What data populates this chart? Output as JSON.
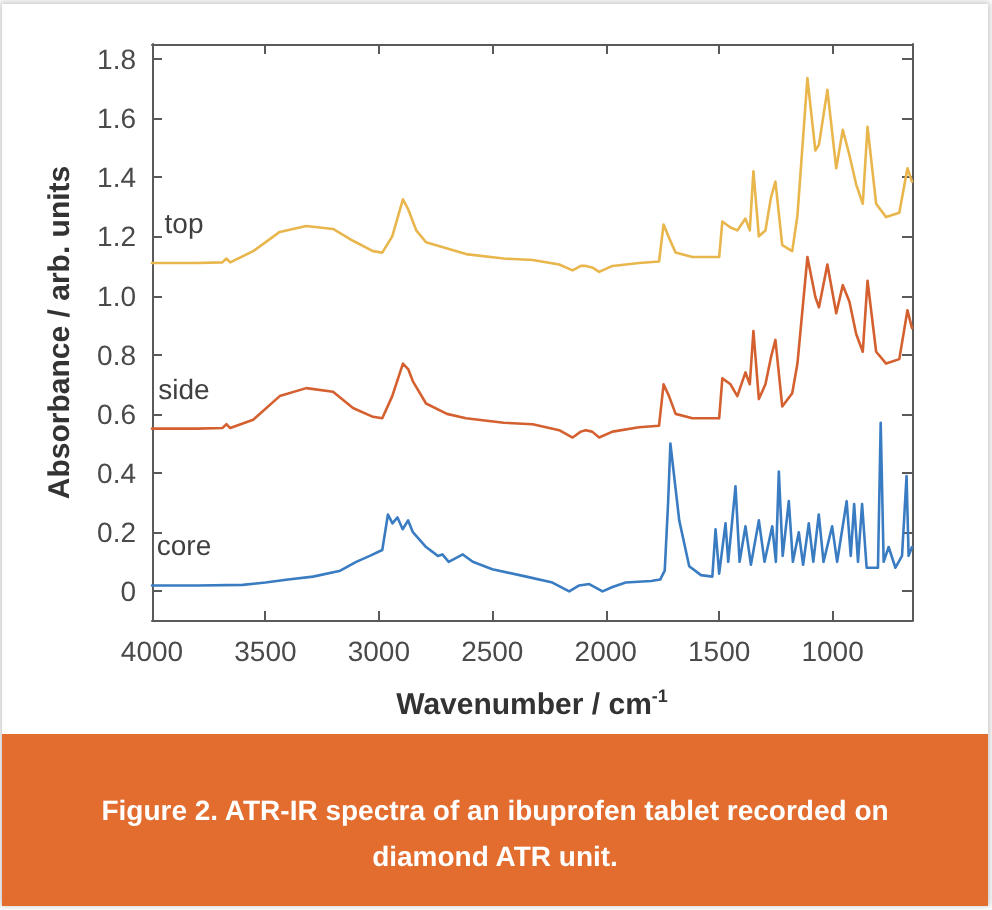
{
  "chart_data": {
    "type": "line",
    "xlabel": "Wavenumber / cm$^{-1}$",
    "ylabel": "Absorbance / arb. units",
    "annotations": [
      "Figure 2. ATR-IR spectra of an ibuprofen tablet recorded on diamond ATR unit."
    ],
    "xlim": [
      4000,
      650
    ],
    "xticks": [
      4000,
      3500,
      3000,
      2500,
      2000,
      1500,
      1000
    ],
    "ylim": [
      -0.1,
      1.85
    ],
    "yticks": [
      0,
      0.2,
      0.4,
      0.6,
      0.8,
      {
        "value": 1,
        "label": "1.0"
      },
      1.2,
      1.4,
      1.6,
      1.8
    ],
    "grid": false,
    "line_style": "solid",
    "series": [
      {
        "name": "top",
        "color": "#e8b64c",
        "x": [
          4000,
          3800,
          3690,
          3672,
          3655,
          3554,
          3437,
          3320,
          3202,
          3114,
          3026,
          2985,
          2941,
          2894,
          2870,
          2835,
          2792,
          2616,
          2450,
          2322,
          2205,
          2146,
          2110,
          2088,
          2060,
          2029,
          1970,
          1853,
          1765,
          1745,
          1721,
          1692,
          1618,
          1500,
          1486,
          1450,
          1420,
          1384,
          1365,
          1349,
          1325,
          1296,
          1272,
          1252,
          1222,
          1178,
          1155,
          1111,
          1076,
          1060,
          1023,
          984,
          955,
          926,
          896,
          867,
          846,
          808,
          764,
          706,
          670,
          650
        ],
        "values": [
          1.11,
          1.11,
          1.112,
          1.125,
          1.112,
          1.15,
          1.215,
          1.235,
          1.225,
          1.185,
          1.15,
          1.145,
          1.2,
          1.325,
          1.29,
          1.22,
          1.18,
          1.14,
          1.125,
          1.12,
          1.105,
          1.085,
          1.1,
          1.1,
          1.095,
          1.08,
          1.1,
          1.11,
          1.115,
          1.24,
          1.195,
          1.145,
          1.13,
          1.13,
          1.25,
          1.23,
          1.22,
          1.26,
          1.22,
          1.42,
          1.2,
          1.22,
          1.33,
          1.385,
          1.17,
          1.15,
          1.27,
          1.735,
          1.49,
          1.51,
          1.695,
          1.43,
          1.56,
          1.475,
          1.375,
          1.31,
          1.57,
          1.31,
          1.265,
          1.28,
          1.43,
          1.385
        ]
      },
      {
        "name": "side",
        "color": "#d4602f",
        "x": [
          4000,
          3800,
          3690,
          3672,
          3655,
          3554,
          3437,
          3320,
          3202,
          3114,
          3026,
          2985,
          2941,
          2894,
          2870,
          2850,
          2792,
          2700,
          2616,
          2450,
          2322,
          2205,
          2146,
          2110,
          2088,
          2060,
          2029,
          1970,
          1853,
          1765,
          1745,
          1721,
          1692,
          1618,
          1500,
          1486,
          1450,
          1420,
          1384,
          1365,
          1349,
          1325,
          1296,
          1272,
          1252,
          1222,
          1178,
          1155,
          1111,
          1076,
          1060,
          1023,
          984,
          955,
          926,
          896,
          867,
          846,
          808,
          764,
          706,
          670,
          650
        ],
        "values": [
          0.55,
          0.55,
          0.552,
          0.565,
          0.552,
          0.58,
          0.66,
          0.687,
          0.675,
          0.62,
          0.59,
          0.585,
          0.66,
          0.77,
          0.75,
          0.71,
          0.635,
          0.6,
          0.585,
          0.57,
          0.565,
          0.545,
          0.52,
          0.54,
          0.545,
          0.54,
          0.52,
          0.54,
          0.555,
          0.56,
          0.7,
          0.66,
          0.6,
          0.585,
          0.585,
          0.72,
          0.7,
          0.66,
          0.74,
          0.7,
          0.88,
          0.65,
          0.7,
          0.79,
          0.85,
          0.625,
          0.67,
          0.77,
          1.13,
          0.995,
          0.96,
          1.105,
          0.94,
          1.035,
          0.98,
          0.87,
          0.81,
          1.05,
          0.81,
          0.77,
          0.785,
          0.95,
          0.89
        ]
      },
      {
        "name": "core",
        "color": "#3a7cc2",
        "x": [
          4000,
          3800,
          3600,
          3500,
          3400,
          3290,
          3170,
          3100,
          3040,
          2985,
          2960,
          2940,
          2918,
          2895,
          2871,
          2850,
          2792,
          2740,
          2720,
          2692,
          2630,
          2586,
          2500,
          2350,
          2235,
          2161,
          2117,
          2073,
          2014,
          1970,
          1912,
          1800,
          1760,
          1740,
          1725,
          1715,
          1700,
          1676,
          1632,
          1580,
          1530,
          1516,
          1500,
          1472,
          1460,
          1428,
          1410,
          1384,
          1360,
          1325,
          1300,
          1266,
          1250,
          1237,
          1220,
          1193,
          1175,
          1149,
          1130,
          1105,
          1085,
          1061,
          1040,
          1002,
          980,
          938,
          920,
          905,
          888,
          870,
          850,
          800,
          788,
          775,
          753,
          723,
          694,
          674,
          665,
          650
        ],
        "values": [
          0.02,
          0.02,
          0.022,
          0.03,
          0.04,
          0.05,
          0.07,
          0.1,
          0.12,
          0.14,
          0.26,
          0.23,
          0.25,
          0.21,
          0.24,
          0.2,
          0.15,
          0.12,
          0.125,
          0.1,
          0.125,
          0.1,
          0.075,
          0.05,
          0.03,
          0.0,
          0.02,
          0.025,
          0.0,
          0.015,
          0.03,
          0.035,
          0.04,
          0.07,
          0.3,
          0.5,
          0.4,
          0.24,
          0.085,
          0.055,
          0.05,
          0.21,
          0.06,
          0.23,
          0.1,
          0.355,
          0.1,
          0.22,
          0.09,
          0.24,
          0.1,
          0.22,
          0.1,
          0.405,
          0.12,
          0.305,
          0.1,
          0.2,
          0.09,
          0.23,
          0.1,
          0.26,
          0.1,
          0.22,
          0.1,
          0.305,
          0.12,
          0.295,
          0.1,
          0.295,
          0.08,
          0.08,
          0.57,
          0.1,
          0.15,
          0.08,
          0.12,
          0.39,
          0.12,
          0.15
        ]
      }
    ]
  }
}
